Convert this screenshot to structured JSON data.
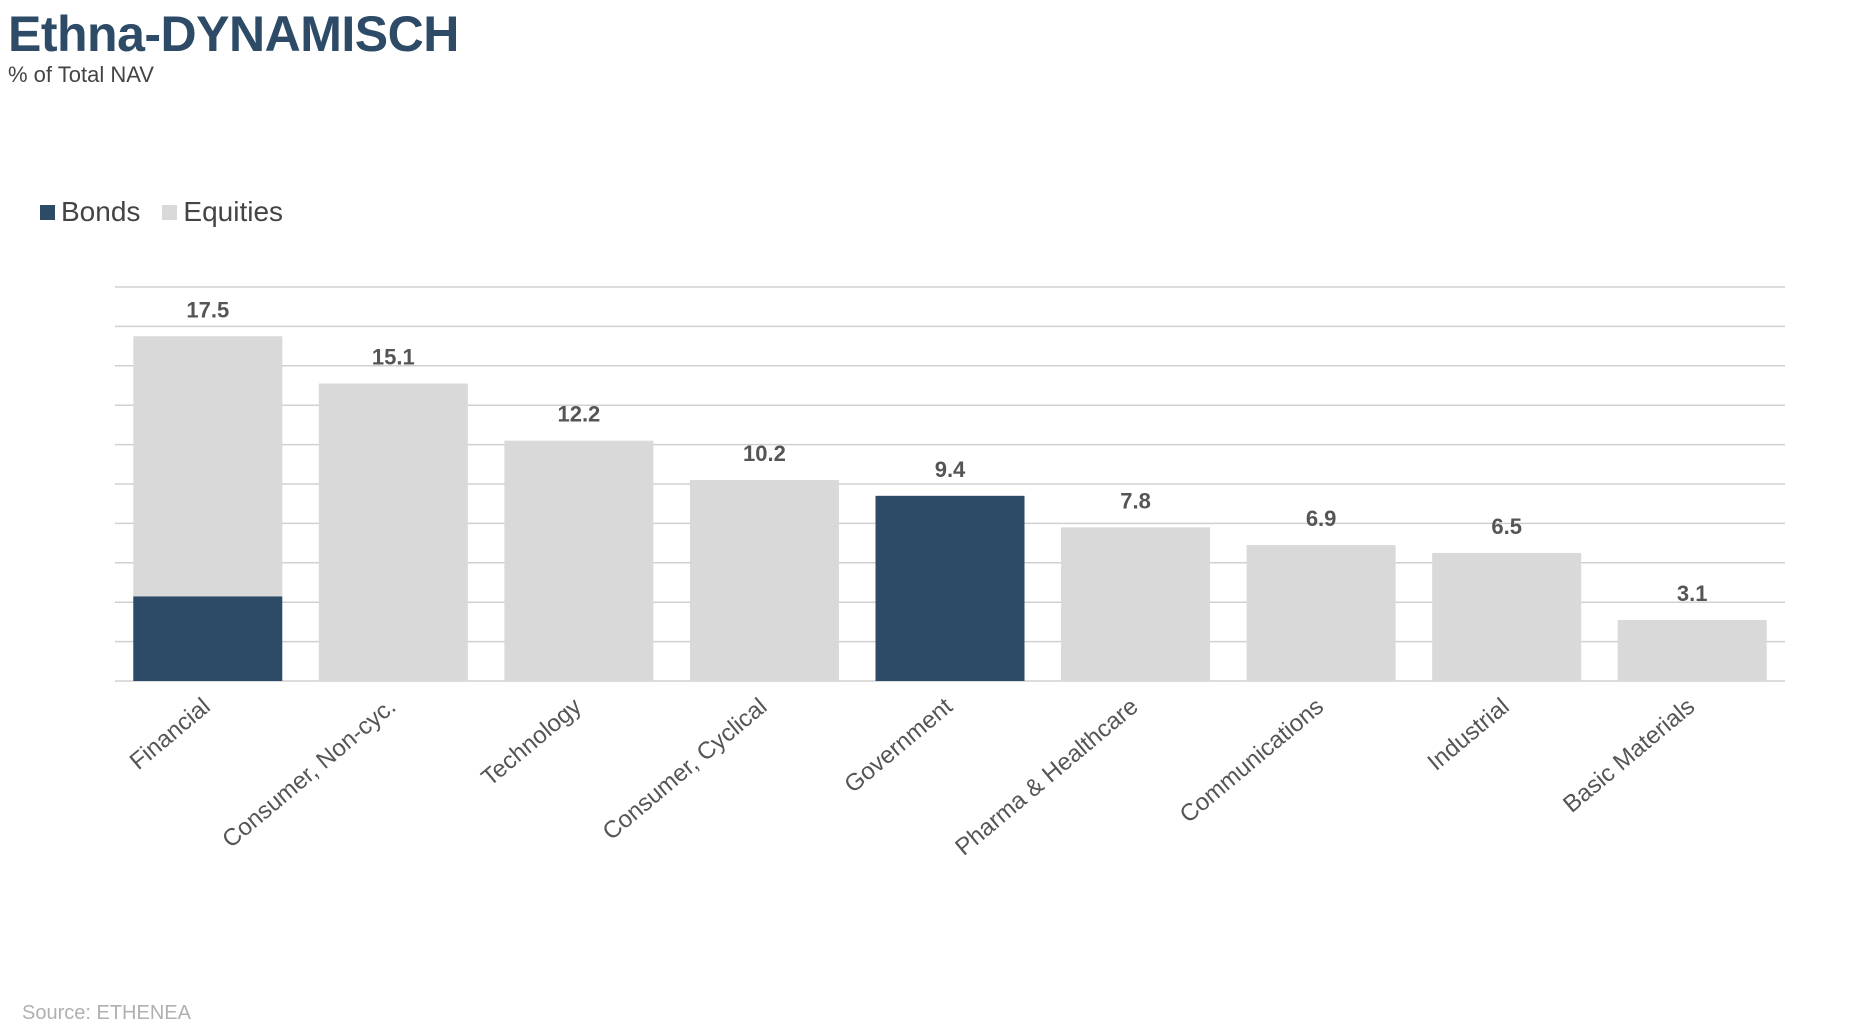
{
  "header": {
    "title": "Ethna-DYNAMISCH",
    "subtitle": "% of Total NAV"
  },
  "footer": {
    "source": "Source: ETHENEA"
  },
  "colors": {
    "bonds": "#2d4a66",
    "equities": "#d9d9d9",
    "grid": "#d0d0d0",
    "label": "#555555"
  },
  "chart_data": {
    "type": "bar",
    "stacked": true,
    "categories": [
      "Financial",
      "Consumer, Non-cyc.",
      "Technology",
      "Consumer, Cyclical",
      "Government",
      "Pharma & Healthcare",
      "Communications",
      "Industrial",
      "Basic Materials"
    ],
    "series": [
      {
        "name": "Bonds",
        "color": "#2d4a66",
        "values": [
          4.3,
          0,
          0,
          0,
          9.4,
          0,
          0,
          0,
          0
        ]
      },
      {
        "name": "Equities",
        "color": "#d9d9d9",
        "values": [
          13.2,
          15.1,
          12.2,
          10.2,
          0,
          7.8,
          6.9,
          6.5,
          3.1
        ]
      }
    ],
    "totals": [
      "17.5",
      "15.1",
      "12.2",
      "10.2",
      "9.4",
      "7.8",
      "6.9",
      "6.5",
      "3.1"
    ],
    "title": "Ethna-DYNAMISCH",
    "ylabel": "% of Total NAV",
    "ylim": [
      0,
      20
    ],
    "grid": true,
    "legend": "top-left"
  }
}
